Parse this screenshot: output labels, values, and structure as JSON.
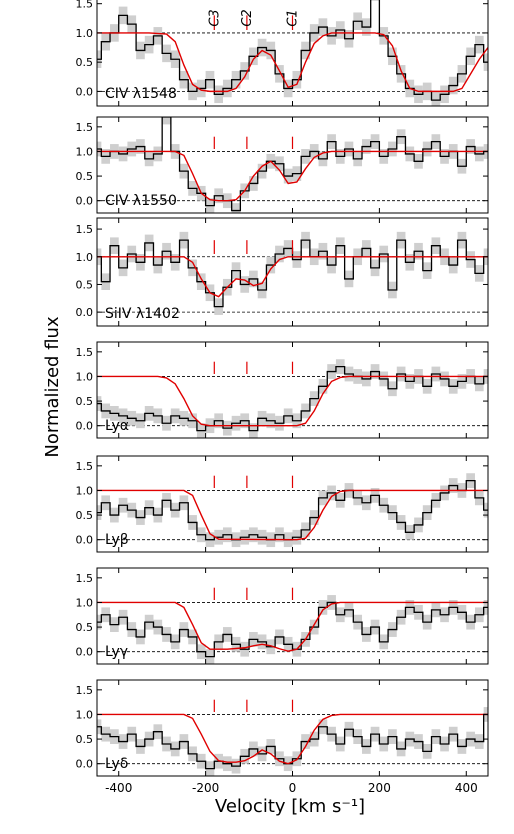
{
  "chart_data": {
    "type": "line",
    "xlabel": "Velocity [km s⁻¹]",
    "ylabel": "Normalized flux",
    "xlim": [
      -450,
      450
    ],
    "xticks": [
      -400,
      -200,
      0,
      200,
      400
    ],
    "xtick_labels": [
      "-400",
      "-200",
      "0",
      "200",
      "400"
    ],
    "component_markers": [
      {
        "label": "C3",
        "v": -180
      },
      {
        "label": "C2",
        "v": -105
      },
      {
        "label": "C1",
        "v": 0
      }
    ],
    "panels": [
      {
        "label": "CIV λ1548",
        "ylim": [
          -0.25,
          1.7
        ],
        "yticks": [
          0.0,
          0.5,
          1.0,
          1.5
        ],
        "ytick_labels": [
          "0.0",
          "0.5",
          "1.0",
          "1.5"
        ],
        "data_x": [
          -450,
          -430,
          -410,
          -390,
          -370,
          -350,
          -330,
          -310,
          -290,
          -270,
          -250,
          -230,
          -210,
          -190,
          -170,
          -150,
          -130,
          -110,
          -90,
          -70,
          -50,
          -30,
          -10,
          10,
          30,
          50,
          70,
          90,
          110,
          130,
          150,
          170,
          190,
          210,
          230,
          250,
          270,
          290,
          310,
          330,
          350,
          370,
          390,
          410,
          430,
          450
        ],
        "data_y": [
          0.55,
          0.85,
          1.0,
          1.3,
          1.15,
          0.7,
          0.8,
          0.95,
          0.65,
          0.55,
          0.2,
          0.0,
          0.05,
          0.2,
          -0.05,
          0.05,
          0.2,
          0.35,
          0.6,
          0.75,
          0.7,
          0.3,
          0.05,
          0.2,
          0.7,
          1.0,
          1.1,
          0.95,
          1.05,
          0.9,
          1.2,
          1.1,
          1.7,
          0.95,
          0.6,
          0.3,
          0.05,
          -0.05,
          0.0,
          -0.15,
          -0.05,
          0.1,
          0.3,
          0.6,
          0.8,
          0.5
        ],
        "model_x": [
          -450,
          -330,
          -290,
          -270,
          -250,
          -230,
          -210,
          -190,
          -170,
          -150,
          -130,
          -110,
          -90,
          -70,
          -50,
          -30,
          -10,
          10,
          30,
          50,
          70,
          90,
          110,
          130,
          150,
          170,
          190,
          210,
          230,
          250,
          270,
          290,
          310,
          330,
          350,
          370,
          390,
          410,
          430,
          450
        ],
        "model_y": [
          1.0,
          1.0,
          0.98,
          0.85,
          0.45,
          0.12,
          0.02,
          0.0,
          0.0,
          0.0,
          0.05,
          0.25,
          0.55,
          0.7,
          0.62,
          0.35,
          0.07,
          0.12,
          0.5,
          0.82,
          0.95,
          1.0,
          1.0,
          1.0,
          1.0,
          1.0,
          1.0,
          0.97,
          0.78,
          0.35,
          0.05,
          0.0,
          0.0,
          0.0,
          0.0,
          0.0,
          0.05,
          0.3,
          0.55,
          0.75
        ]
      },
      {
        "label": "CIV λ1550",
        "ylim": [
          -0.25,
          1.7
        ],
        "yticks": [
          0.0,
          0.5,
          1.0,
          1.5
        ],
        "ytick_labels": [
          "0.0",
          "0.5",
          "1.0",
          "1.5"
        ],
        "data_x": [
          -450,
          -430,
          -410,
          -390,
          -370,
          -350,
          -330,
          -310,
          -290,
          -270,
          -250,
          -230,
          -210,
          -190,
          -170,
          -150,
          -130,
          -110,
          -90,
          -70,
          -50,
          -30,
          -10,
          10,
          30,
          50,
          70,
          90,
          110,
          130,
          150,
          170,
          190,
          210,
          230,
          250,
          270,
          290,
          310,
          330,
          350,
          370,
          390,
          410,
          430,
          450
        ],
        "data_y": [
          1.05,
          0.9,
          1.0,
          0.95,
          1.05,
          1.1,
          0.85,
          0.95,
          1.7,
          1.0,
          0.6,
          0.25,
          0.15,
          -0.1,
          0.1,
          0.0,
          -0.2,
          0.2,
          0.35,
          0.6,
          0.8,
          0.75,
          0.5,
          0.55,
          0.9,
          1.0,
          0.85,
          1.2,
          0.9,
          1.05,
          0.85,
          1.1,
          1.2,
          0.9,
          1.05,
          1.3,
          0.95,
          0.8,
          1.05,
          1.2,
          0.9,
          1.0,
          0.7,
          1.1,
          0.95,
          1.0
        ],
        "model_x": [
          -450,
          -270,
          -250,
          -230,
          -210,
          -190,
          -170,
          -150,
          -130,
          -110,
          -90,
          -70,
          -50,
          -30,
          -10,
          10,
          30,
          50,
          70,
          90,
          450
        ],
        "model_y": [
          1.0,
          1.0,
          0.92,
          0.55,
          0.15,
          0.02,
          0.0,
          0.0,
          0.02,
          0.2,
          0.5,
          0.7,
          0.8,
          0.62,
          0.35,
          0.38,
          0.65,
          0.88,
          0.97,
          1.0,
          1.0
        ]
      },
      {
        "label": "SiIV λ1402",
        "ylim": [
          -0.25,
          1.7
        ],
        "yticks": [
          0.0,
          0.5,
          1.0,
          1.5
        ],
        "ytick_labels": [
          "0.0",
          "0.5",
          "1.0",
          "1.5"
        ],
        "data_x": [
          -450,
          -430,
          -410,
          -390,
          -370,
          -350,
          -330,
          -310,
          -290,
          -270,
          -250,
          -230,
          -210,
          -190,
          -170,
          -150,
          -130,
          -110,
          -90,
          -70,
          -50,
          -30,
          -10,
          10,
          30,
          50,
          70,
          90,
          110,
          130,
          150,
          170,
          190,
          210,
          230,
          250,
          270,
          290,
          310,
          330,
          350,
          370,
          390,
          410,
          430,
          450
        ],
        "data_y": [
          1.0,
          0.55,
          1.2,
          0.8,
          1.05,
          0.9,
          1.25,
          0.85,
          1.1,
          0.9,
          1.3,
          0.8,
          0.55,
          0.35,
          0.1,
          0.45,
          0.75,
          0.5,
          0.6,
          0.4,
          0.85,
          1.05,
          1.15,
          0.95,
          1.3,
          1.0,
          1.1,
          0.85,
          1.2,
          0.6,
          1.0,
          1.15,
          0.8,
          1.05,
          0.4,
          1.3,
          0.9,
          1.1,
          0.75,
          1.2,
          1.0,
          0.85,
          1.3,
          0.95,
          0.7,
          1.0
        ],
        "model_x": [
          -450,
          -250,
          -230,
          -210,
          -190,
          -170,
          -150,
          -130,
          -110,
          -90,
          -70,
          -50,
          -30,
          -10,
          10,
          450
        ],
        "model_y": [
          1.0,
          1.0,
          0.9,
          0.6,
          0.35,
          0.28,
          0.45,
          0.6,
          0.58,
          0.48,
          0.52,
          0.78,
          0.95,
          1.0,
          1.0,
          1.0
        ]
      },
      {
        "label": "Lyα",
        "ylim": [
          -0.25,
          1.7
        ],
        "yticks": [
          0.0,
          0.5,
          1.0,
          1.5
        ],
        "ytick_labels": [
          "0.0",
          "0.5",
          "1.0",
          "1.5"
        ],
        "data_x": [
          -450,
          -430,
          -410,
          -390,
          -370,
          -350,
          -330,
          -310,
          -290,
          -270,
          -250,
          -230,
          -210,
          -190,
          -170,
          -150,
          -130,
          -110,
          -90,
          -70,
          -50,
          -30,
          -10,
          10,
          30,
          50,
          70,
          90,
          110,
          130,
          150,
          170,
          190,
          210,
          230,
          250,
          270,
          290,
          310,
          330,
          350,
          370,
          390,
          410,
          430,
          450
        ],
        "data_y": [
          0.45,
          0.3,
          0.25,
          0.2,
          0.15,
          0.1,
          0.25,
          0.2,
          0.05,
          0.2,
          0.15,
          0.1,
          -0.1,
          0.0,
          0.1,
          -0.05,
          0.05,
          0.1,
          -0.1,
          0.15,
          0.1,
          0.05,
          0.2,
          0.1,
          0.3,
          0.55,
          0.8,
          1.1,
          1.2,
          1.05,
          1.0,
          0.95,
          1.1,
          0.95,
          0.75,
          1.05,
          0.9,
          1.0,
          0.8,
          1.05,
          0.95,
          0.8,
          0.9,
          1.0,
          0.85,
          1.0
        ],
        "model_x": [
          -450,
          -310,
          -290,
          -270,
          -250,
          -230,
          -210,
          -190,
          10,
          30,
          50,
          70,
          90,
          110,
          130,
          450
        ],
        "model_y": [
          1.0,
          1.0,
          0.97,
          0.85,
          0.55,
          0.2,
          0.03,
          0.0,
          0.0,
          0.05,
          0.3,
          0.65,
          0.9,
          0.98,
          1.0,
          1.0
        ]
      },
      {
        "label": "Lyβ",
        "ylim": [
          -0.25,
          1.7
        ],
        "yticks": [
          0.0,
          0.5,
          1.0,
          1.5
        ],
        "ytick_labels": [
          "0.0",
          "0.5",
          "1.0",
          "1.5"
        ],
        "data_x": [
          -450,
          -430,
          -410,
          -390,
          -370,
          -350,
          -330,
          -310,
          -290,
          -270,
          -250,
          -230,
          -210,
          -190,
          -170,
          -150,
          -130,
          -110,
          -90,
          -70,
          -50,
          -30,
          -10,
          10,
          30,
          50,
          70,
          90,
          110,
          130,
          150,
          170,
          190,
          210,
          230,
          250,
          270,
          290,
          310,
          330,
          350,
          370,
          390,
          410,
          430,
          450
        ],
        "data_y": [
          0.55,
          0.75,
          0.5,
          0.7,
          0.6,
          0.45,
          0.65,
          0.5,
          0.8,
          0.6,
          0.75,
          0.35,
          0.1,
          0.0,
          0.05,
          0.1,
          0.0,
          0.05,
          0.1,
          0.05,
          0.0,
          0.1,
          0.0,
          0.05,
          0.2,
          0.45,
          0.85,
          0.95,
          0.8,
          1.0,
          0.85,
          0.75,
          0.9,
          0.7,
          0.55,
          0.35,
          0.15,
          0.3,
          0.55,
          0.8,
          0.95,
          1.1,
          1.0,
          1.2,
          0.85,
          0.6
        ],
        "model_x": [
          -450,
          -250,
          -230,
          -210,
          -190,
          -170,
          10,
          30,
          50,
          70,
          90,
          110,
          130,
          450
        ],
        "model_y": [
          1.0,
          1.0,
          0.9,
          0.5,
          0.12,
          0.01,
          0.0,
          0.03,
          0.25,
          0.6,
          0.88,
          0.98,
          1.0,
          1.0
        ]
      },
      {
        "label": "Lyγ",
        "ylim": [
          -0.25,
          1.7
        ],
        "yticks": [
          0.0,
          0.5,
          1.0,
          1.5
        ],
        "ytick_labels": [
          "0.0",
          "0.5",
          "1.0",
          "1.5"
        ],
        "data_x": [
          -450,
          -430,
          -410,
          -390,
          -370,
          -350,
          -330,
          -310,
          -290,
          -270,
          -250,
          -230,
          -210,
          -190,
          -170,
          -150,
          -130,
          -110,
          -90,
          -70,
          -50,
          -30,
          -10,
          10,
          30,
          50,
          70,
          90,
          110,
          130,
          150,
          170,
          190,
          210,
          230,
          250,
          270,
          290,
          310,
          330,
          350,
          370,
          390,
          410,
          430,
          450
        ],
        "data_y": [
          0.6,
          0.75,
          0.55,
          0.7,
          0.45,
          0.3,
          0.6,
          0.5,
          0.35,
          0.2,
          0.45,
          0.3,
          0.0,
          -0.1,
          0.2,
          0.35,
          0.15,
          0.05,
          0.25,
          0.2,
          0.1,
          0.3,
          0.15,
          0.05,
          0.25,
          0.5,
          0.9,
          1.0,
          0.75,
          0.85,
          0.6,
          0.35,
          0.5,
          0.2,
          0.45,
          0.7,
          0.9,
          0.8,
          0.6,
          0.85,
          0.75,
          0.9,
          0.8,
          0.6,
          0.75,
          0.9
        ],
        "model_x": [
          -450,
          -270,
          -250,
          -230,
          -210,
          -190,
          -150,
          -110,
          -90,
          -70,
          -50,
          -30,
          -10,
          10,
          30,
          50,
          70,
          90,
          110,
          450
        ],
        "model_y": [
          1.0,
          1.0,
          0.9,
          0.55,
          0.18,
          0.05,
          0.05,
          0.08,
          0.12,
          0.15,
          0.12,
          0.06,
          0.01,
          0.05,
          0.25,
          0.55,
          0.85,
          0.97,
          1.0,
          1.0
        ]
      },
      {
        "label": "Lyδ",
        "ylim": [
          -0.25,
          1.7
        ],
        "yticks": [
          0.0,
          0.5,
          1.0,
          1.5
        ],
        "ytick_labels": [
          "0.0",
          "0.5",
          "1.0",
          "1.5"
        ],
        "data_x": [
          -450,
          -430,
          -410,
          -390,
          -370,
          -350,
          -330,
          -310,
          -290,
          -270,
          -250,
          -230,
          -210,
          -190,
          -170,
          -150,
          -130,
          -110,
          -90,
          -70,
          -50,
          -30,
          -10,
          10,
          30,
          50,
          70,
          90,
          110,
          130,
          150,
          170,
          190,
          210,
          230,
          250,
          270,
          290,
          310,
          330,
          350,
          370,
          390,
          410,
          430,
          450
        ],
        "data_y": [
          0.75,
          0.6,
          0.55,
          0.45,
          0.6,
          0.35,
          0.5,
          0.65,
          0.4,
          0.3,
          0.45,
          0.2,
          0.05,
          -0.1,
          0.05,
          0.0,
          -0.05,
          0.15,
          0.3,
          0.2,
          0.35,
          0.1,
          0.0,
          0.1,
          0.45,
          0.5,
          0.75,
          0.6,
          0.4,
          0.7,
          0.55,
          0.35,
          0.6,
          0.4,
          0.55,
          0.3,
          0.5,
          0.45,
          0.25,
          0.55,
          0.4,
          0.6,
          0.35,
          0.5,
          0.45,
          1.0
        ],
        "model_x": [
          -450,
          -250,
          -230,
          -210,
          -190,
          -170,
          -150,
          -130,
          -110,
          -90,
          -70,
          -50,
          -30,
          -10,
          10,
          30,
          50,
          70,
          90,
          110,
          450
        ],
        "model_y": [
          1.0,
          1.0,
          0.92,
          0.6,
          0.25,
          0.06,
          0.03,
          0.03,
          0.06,
          0.15,
          0.28,
          0.2,
          0.05,
          0.0,
          0.08,
          0.35,
          0.68,
          0.9,
          0.98,
          1.0,
          1.0
        ]
      }
    ]
  }
}
